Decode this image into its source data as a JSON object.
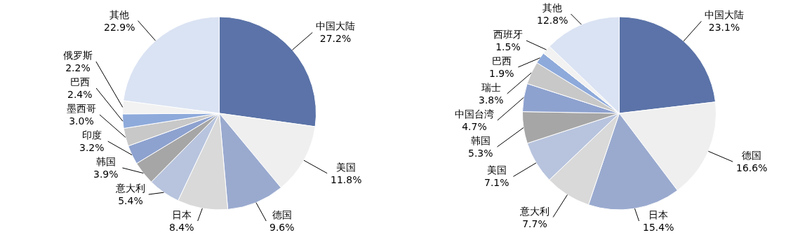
{
  "chart_data": [
    {
      "type": "pie",
      "categories": [
        "中国大陆",
        "美国",
        "德国",
        "日本",
        "意大利",
        "韩国",
        "印度",
        "墨西哥",
        "巴西",
        "俄罗斯",
        "其他"
      ],
      "values": [
        27.2,
        11.8,
        9.6,
        8.4,
        5.4,
        3.9,
        3.2,
        3.0,
        2.4,
        2.2,
        22.9
      ],
      "value_labels": [
        "27.2%",
        "11.8%",
        "9.6%",
        "8.4%",
        "5.4%",
        "3.9%",
        "3.2%",
        "3.0%",
        "2.4%",
        "2.2%",
        "22.9%"
      ],
      "colors": [
        "#5b73a8",
        "#efefef",
        "#9aaacf",
        "#d9d9d9",
        "#b8c4de",
        "#a6a6a6",
        "#8ea2cf",
        "#c8c8c8",
        "#8eaadb",
        "#f2f2f2",
        "#dae3f3"
      ],
      "legend": false
    },
    {
      "type": "pie",
      "categories": [
        "中国大陆",
        "德国",
        "日本",
        "意大利",
        "美国",
        "韩国",
        "中国台湾",
        "瑞士",
        "巴西",
        "西班牙",
        "其他"
      ],
      "values": [
        23.1,
        16.6,
        15.4,
        7.7,
        7.1,
        5.3,
        4.7,
        3.8,
        1.9,
        1.5,
        12.8
      ],
      "value_labels": [
        "23.1%",
        "16.6%",
        "15.4%",
        "7.7%",
        "7.1%",
        "5.3%",
        "4.7%",
        "3.8%",
        "1.9%",
        "1.5%",
        "12.8%"
      ],
      "colors": [
        "#5b73a8",
        "#efefef",
        "#9aaacf",
        "#d9d9d9",
        "#b8c4de",
        "#a6a6a6",
        "#8ea2cf",
        "#c8c8c8",
        "#8eaadb",
        "#f2f2f2",
        "#dae3f3"
      ],
      "legend": false
    }
  ]
}
